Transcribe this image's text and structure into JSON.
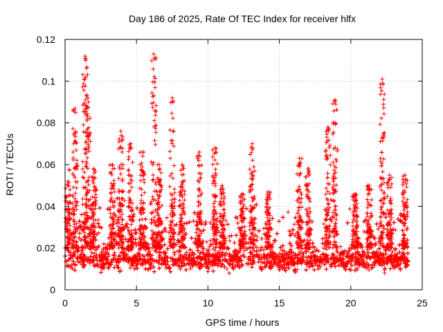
{
  "chart_data": {
    "type": "scatter",
    "title": "Day 186 of 2025, Rate Of TEC Index for receiver hlfx",
    "xlabel": "GPS time / hours",
    "ylabel": "ROTI / TECUs",
    "xlim": [
      0,
      25
    ],
    "ylim": [
      0,
      0.12
    ],
    "xticks": [
      0,
      5,
      10,
      15,
      20,
      25
    ],
    "yticks": [
      0,
      0.02,
      0.04,
      0.06,
      0.08,
      0.1,
      0.12
    ],
    "xtick_labels": [
      "0",
      "5",
      "10",
      "15",
      "20",
      "25"
    ],
    "ytick_labels": [
      "0",
      "0.02",
      "0.04",
      "0.06",
      "0.08",
      "0.1",
      "0.12"
    ],
    "grid": true,
    "marker": "+",
    "color": "#ff0000",
    "series": [
      {
        "name": "ROTI",
        "note": "approximately 9000 samples, 0 to 24 h; dense band 0.005-0.025 TECU/s with spikes",
        "base_range": [
          0.005,
          0.025
        ],
        "data_time_range": [
          0,
          24
        ],
        "spikes": [
          {
            "x": 0.2,
            "peak": 0.052
          },
          {
            "x": 0.7,
            "peak": 0.087
          },
          {
            "x": 1.4,
            "peak": 0.112
          },
          {
            "x": 1.6,
            "peak": 0.092
          },
          {
            "x": 2.0,
            "peak": 0.058
          },
          {
            "x": 3.3,
            "peak": 0.06
          },
          {
            "x": 3.9,
            "peak": 0.076
          },
          {
            "x": 4.6,
            "peak": 0.07
          },
          {
            "x": 5.4,
            "peak": 0.066
          },
          {
            "x": 6.2,
            "peak": 0.113
          },
          {
            "x": 6.6,
            "peak": 0.06
          },
          {
            "x": 7.5,
            "peak": 0.092
          },
          {
            "x": 8.2,
            "peak": 0.06
          },
          {
            "x": 9.4,
            "peak": 0.066
          },
          {
            "x": 10.5,
            "peak": 0.068
          },
          {
            "x": 11.0,
            "peak": 0.05
          },
          {
            "x": 12.4,
            "peak": 0.046
          },
          {
            "x": 13.1,
            "peak": 0.07
          },
          {
            "x": 14.2,
            "peak": 0.047
          },
          {
            "x": 16.4,
            "peak": 0.063
          },
          {
            "x": 17.0,
            "peak": 0.058
          },
          {
            "x": 18.4,
            "peak": 0.078
          },
          {
            "x": 18.9,
            "peak": 0.091
          },
          {
            "x": 20.3,
            "peak": 0.046
          },
          {
            "x": 21.3,
            "peak": 0.05
          },
          {
            "x": 22.2,
            "peak": 0.101
          },
          {
            "x": 22.7,
            "peak": 0.055
          },
          {
            "x": 23.8,
            "peak": 0.055
          }
        ]
      }
    ]
  }
}
